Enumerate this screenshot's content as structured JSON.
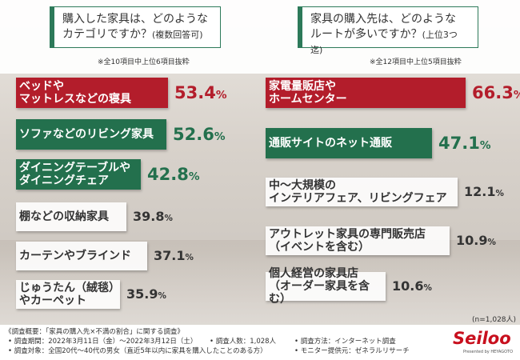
{
  "left": {
    "question_line1": "購入した家具は、どのような",
    "question_line2": "カテゴリですか？",
    "question_note_inline": "(複数回答可)",
    "note": "※全10項目中上位6項目抜粋"
  },
  "right": {
    "question_line1": "家具の購入先は、どのような",
    "question_line2": "ルートが多いですか？",
    "question_note_inline": "(上位3つ迄)",
    "note": "※全12項目中上位5項目抜粋"
  },
  "chart_data": [
    {
      "type": "bar",
      "title": "購入した家具は、どのようなカテゴリですか？(複数回答可)",
      "unit": "%",
      "categories": [
        "ベッドや\nマットレスなどの寝具",
        "ソファなどのリビング家具",
        "ダイニングテーブルや\nダイニングチェア",
        "棚などの収納家具",
        "カーテンやブラインド",
        "じゅうたん（絨毯）やカーペット"
      ],
      "values": [
        53.4,
        52.6,
        42.8,
        39.8,
        37.1,
        35.9
      ],
      "value_labels": [
        "53.4",
        "52.6",
        "42.8",
        "39.8",
        "37.1",
        "35.9"
      ],
      "styles": [
        "red",
        "green",
        "green",
        "gray",
        "gray",
        "gray"
      ]
    },
    {
      "type": "bar",
      "title": "家具の購入先は、どのようなルートが多いですか？(上位3つ迄)",
      "unit": "%",
      "categories": [
        "家電量販店や\nホームセンター",
        "通販サイトのネット通販",
        "中～大規模の\nインテリアフェア、リビングフェア",
        "アウトレット家具の専門販売店\n（イベントを含む）",
        "個人経営の家具店\n（オーダー家具を含む）"
      ],
      "values": [
        66.3,
        47.1,
        12.1,
        10.9,
        10.6
      ],
      "value_labels": [
        "66.3",
        "47.1",
        "12.1",
        "10.9",
        "10.6"
      ],
      "styles": [
        "red",
        "green",
        "gray",
        "gray",
        "gray"
      ]
    }
  ],
  "n_note": "(n=1,028人)",
  "footer": {
    "overview": "《調査概要：「家具の購入先×不満の割合」に関する調査》",
    "period": "• 調査期間：2022年3月11日（金）～2022年3月12日（土）",
    "people": "• 調査人数：1,028人",
    "method": "• 調査方法：インターネット調査",
    "target": "• 調査対象：全国20代～40代の男女（直近5年以内に家具を購入したことのある方）",
    "provider": "• モニター提供元：ゼネラルリサーチ"
  },
  "logo": {
    "name": "Seiloo",
    "sub": "Presented by HEYAGOTO"
  },
  "colors": {
    "red": "#b31d2b",
    "green": "#23704d",
    "accent_border": "#2d7a5a"
  }
}
